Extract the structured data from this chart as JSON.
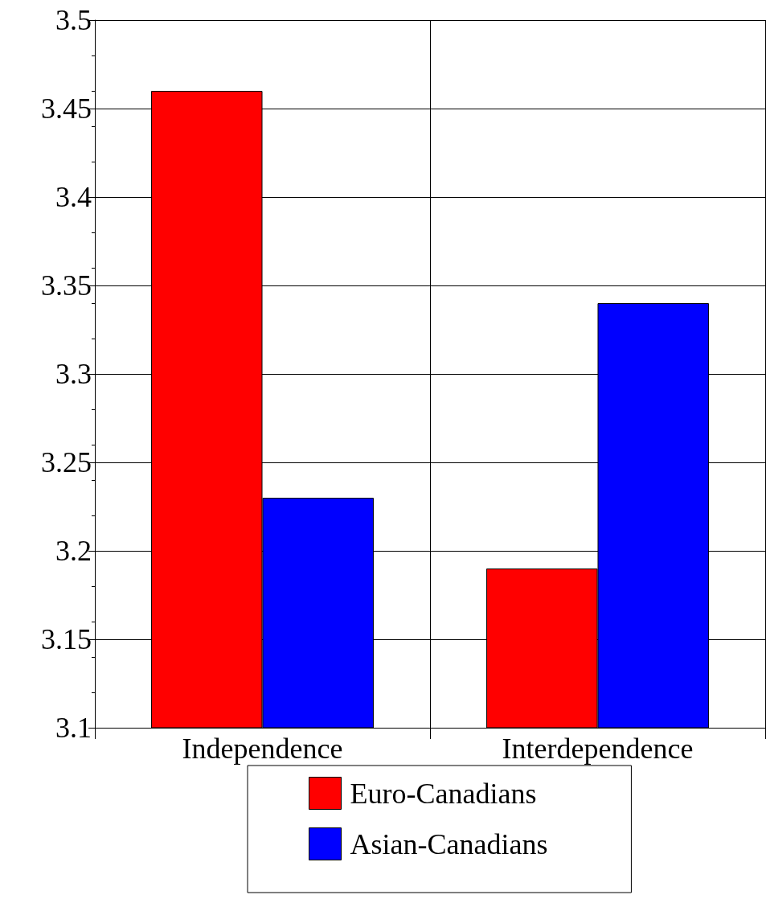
{
  "chart_data": {
    "type": "bar",
    "categories": [
      "Independence",
      "Interdependence"
    ],
    "series": [
      {
        "name": "Euro-Canadians",
        "color": "#ff0000",
        "values": [
          3.46,
          3.19
        ]
      },
      {
        "name": "Asian-Canadians",
        "color": "#0000ff",
        "values": [
          3.23,
          3.34
        ]
      }
    ],
    "ylim": [
      3.1,
      3.5
    ],
    "yticks": [
      3.1,
      3.15,
      3.2,
      3.25,
      3.3,
      3.35,
      3.4,
      3.45,
      3.5
    ],
    "grid": true,
    "legend": "bottom"
  }
}
